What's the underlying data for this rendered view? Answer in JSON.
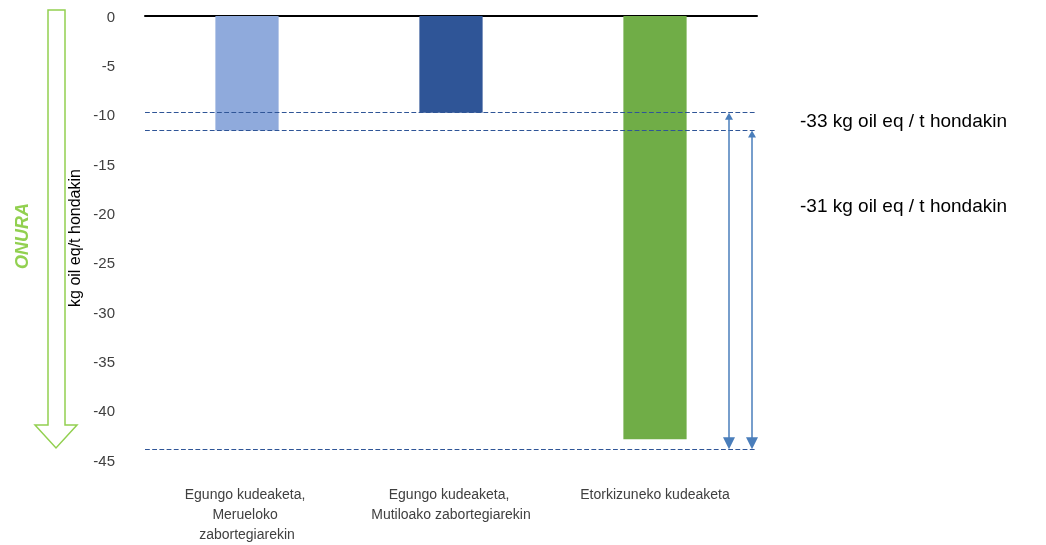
{
  "chart_data": {
    "type": "bar",
    "ylabel": "kg oil eq/t hondakin",
    "categories": [
      "Egungo kudeaketa, Merueloko zabortegiarekin",
      "Egungo kudeaketa, Mutiloako zabortegiarekin",
      "Etorkizuneko kudeaketa"
    ],
    "values": [
      -11.6,
      -9.8,
      -42.9
    ],
    "colors": [
      "#8faadc",
      "#2f5597",
      "#70ad47"
    ],
    "ylim": [
      -45,
      0
    ],
    "yticks": [
      0,
      -5,
      -10,
      -15,
      -20,
      -25,
      -30,
      -35,
      -40,
      -45
    ],
    "grid": false,
    "ref_lines": [
      {
        "axis": "y",
        "value": -9.8,
        "color": "#2f5597",
        "line_style": "dashed"
      },
      {
        "axis": "y",
        "value": -11.6,
        "color": "#2f5597",
        "line_style": "dashed"
      },
      {
        "axis": "y",
        "value": -43.9,
        "color": "#2f5597",
        "line_style": "dashed"
      }
    ],
    "annotations": [
      "ONURA",
      "-33 kg oil eq / t hondakin",
      "-31 kg oil eq / t hondakin"
    ]
  }
}
